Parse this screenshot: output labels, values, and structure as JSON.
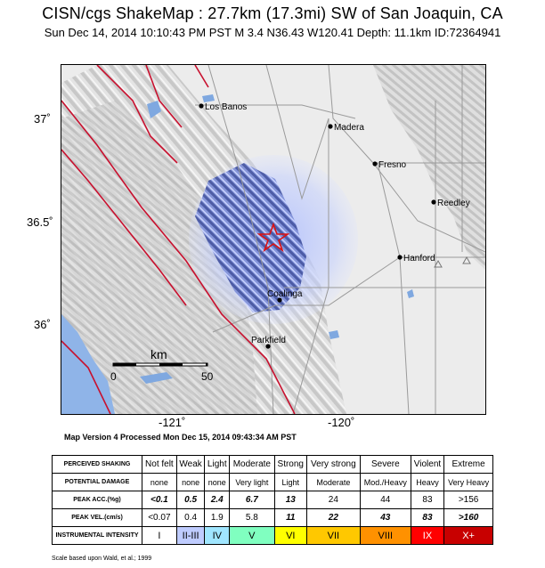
{
  "header": {
    "title": "CISN/cgs ShakeMap : 27.7km (17.3mi) SW of San Joaquin,  CA",
    "subtitle": "Sun Dec 14, 2014 10:10:43 PM PST   M 3.4   N36.43 W120.41   Depth: 11.1km   ID:72364941"
  },
  "map": {
    "y_labels": [
      "37˚",
      "36.5˚",
      "36˚"
    ],
    "x_labels": [
      "-121˚",
      "-120˚"
    ],
    "scale": {
      "unit": "km",
      "start": "0",
      "end": "50"
    },
    "cities": [
      "Los Banos",
      "Madera",
      "Fresno",
      "Reedley",
      "Hanford",
      "Coalinga",
      "Parkfield"
    ],
    "epicenter_icon": "star-icon",
    "colors": {
      "intensity_blue": "#a9b9ff",
      "fault_red": "#c8102e",
      "water": "#7fa8e0"
    }
  },
  "version_text": "Map Version 4 Processed Mon Dec 15, 2014 09:43:34 AM PST",
  "legend": {
    "perceived_header": "PERCEIVED SHAKING",
    "perceived": [
      "Not felt",
      "Weak",
      "Light",
      "Moderate",
      "Strong",
      "Very strong",
      "Severe",
      "Violent",
      "Extreme"
    ],
    "damage_header": "POTENTIAL DAMAGE",
    "damage": [
      "none",
      "none",
      "none",
      "Very light",
      "Light",
      "Moderate",
      "Mod./Heavy",
      "Heavy",
      "Very Heavy"
    ],
    "acc_header": "PEAK ACC.(%g)",
    "acc": [
      "<0.1",
      "0.5",
      "2.4",
      "6.7",
      "13",
      "24",
      "44",
      "83",
      ">156"
    ],
    "vel_header": "PEAK VEL.(cm/s)",
    "vel": [
      "<0.07",
      "0.4",
      "1.9",
      "5.8",
      "11",
      "22",
      "43",
      "83",
      ">160"
    ],
    "intensity_header": "INSTRUMENTAL INTENSITY",
    "intensity": [
      "I",
      "II-III",
      "IV",
      "V",
      "VI",
      "VII",
      "VIII",
      "IX",
      "X+"
    ],
    "intensity_colors": [
      "#ffffff",
      "#bfccff",
      "#a0e6ff",
      "#80ffc0",
      "#ffff00",
      "#ffc800",
      "#ff9100",
      "#ff0000",
      "#c80000"
    ]
  },
  "footnote": "Scale based upon Wald, et al.; 1999"
}
